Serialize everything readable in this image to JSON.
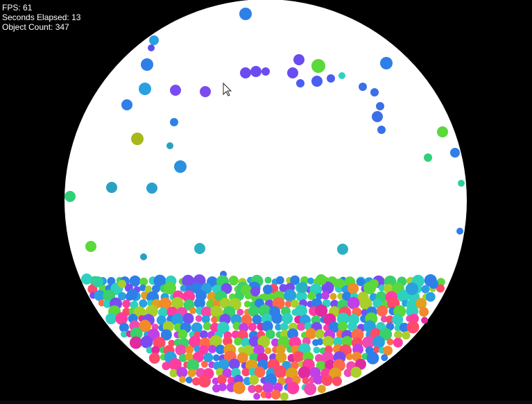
{
  "hud": {
    "fps": "FPS: 61",
    "seconds_elapsed": "Seconds Elapsed: 13",
    "object_count": "Object Count: 347"
  },
  "arena": {
    "background": "#000000",
    "container_fill": "#ffffff",
    "ball_palette": [
      "#2fd0c0",
      "#7a4cf0",
      "#2f7fe8",
      "#5bd83a",
      "#ff3ca0",
      "#f08a2a",
      "#e02aa0",
      "#a8cf2a",
      "#2aa0e0",
      "#c040e8",
      "#ff4a6a",
      "#e0a020"
    ]
  },
  "cursor": {
    "icon": "mouse-pointer-icon"
  }
}
